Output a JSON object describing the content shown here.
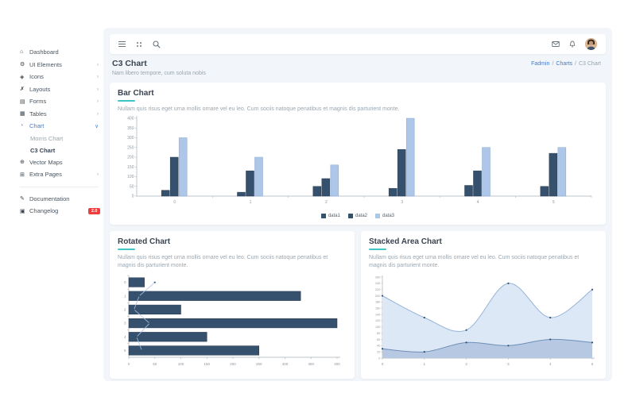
{
  "sidebar": {
    "items": [
      {
        "label": "Dashboard",
        "icon": "dashboard-icon"
      },
      {
        "label": "UI Elements",
        "icon": "ui-elements-icon",
        "chevron": "›"
      },
      {
        "label": "Icons",
        "icon": "icons-icon",
        "chevron": "›"
      },
      {
        "label": "Layouts",
        "icon": "layouts-icon",
        "chevron": "›"
      },
      {
        "label": "Forms",
        "icon": "forms-icon",
        "chevron": "›"
      },
      {
        "label": "Tables",
        "icon": "tables-icon",
        "chevron": "›"
      },
      {
        "label": "Chart",
        "icon": "chart-icon",
        "chevron": "∨",
        "active": true
      },
      {
        "label": "Vector Maps",
        "icon": "vector-maps-icon"
      },
      {
        "label": "Extra Pages",
        "icon": "extra-pages-icon",
        "chevron": "›"
      }
    ],
    "submenu": [
      {
        "label": "Morris Chart"
      },
      {
        "label": "C3 Chart",
        "current": true
      }
    ],
    "footer": [
      {
        "label": "Documentation",
        "icon": "documentation-icon"
      },
      {
        "label": "Changelog",
        "icon": "changelog-icon",
        "badge": "2.0"
      }
    ]
  },
  "page_header": {
    "title": "C3 Chart",
    "subtitle": "Nam libero tempore, cum soluta nobis",
    "breadcrumb": [
      "Fadmin",
      "Charts",
      "C3 Chart"
    ]
  },
  "cards": {
    "bar": {
      "title": "Bar Chart",
      "description": "Nullam quis risus eget urna mollis ornare vel eu leo. Cum sociis natoque penatibus et magnis dis parturient monte."
    },
    "rotated": {
      "title": "Rotated Chart",
      "description": "Nullam quis risus eget urna mollis ornare vel eu leo. Cum sociis natoque penatibus et magnis dis parturient monte."
    },
    "area": {
      "title": "Stacked Area Chart",
      "description": "Nullam quis risus eget urna mollis ornare vel eu leo. Cum sociis natoque penatibus et magnis dis parturient monte."
    }
  },
  "colors": {
    "navy": "#36516e",
    "navy_border": "#26394e",
    "light_blue": "#aec6e8",
    "light_blue_border": "#86a7d2",
    "teal_accent": "#41c5c7",
    "link_blue": "#3b7ddd",
    "axis": "#aab2ba",
    "axis_text": "#8b959e"
  },
  "chart_data": [
    {
      "id": "bar-chart",
      "type": "bar",
      "title": "Bar Chart",
      "categories": [
        "0",
        "1",
        "2",
        "3",
        "4",
        "5"
      ],
      "series": [
        {
          "name": "data1",
          "color": "#36516e",
          "border": "#26394e",
          "values": [
            30,
            20,
            50,
            40,
            55,
            50
          ]
        },
        {
          "name": "data2",
          "color": "#36516e",
          "border": "#26394e",
          "values": [
            200,
            130,
            90,
            240,
            130,
            220
          ]
        },
        {
          "name": "data3",
          "color": "#aec6e8",
          "border": "#86a7d2",
          "values": [
            300,
            200,
            160,
            400,
            250,
            250
          ]
        }
      ],
      "xlabel": "",
      "ylabel": "",
      "ylim": [
        0,
        400
      ],
      "ytick_step": 50,
      "grid": false,
      "legend_position": "bottom"
    },
    {
      "id": "rotated-chart",
      "type": "bar",
      "rotated": true,
      "title": "Rotated Chart",
      "categories": [
        "0",
        "1",
        "2",
        "3",
        "4",
        "5"
      ],
      "series": [
        {
          "name": "data1",
          "type": "bar",
          "color": "#36516e",
          "border": "#26394e",
          "values": [
            30,
            330,
            100,
            400,
            150,
            250
          ]
        },
        {
          "name": "data2",
          "type": "line",
          "color": "#aec6e8",
          "dot_color": "#2f4a63",
          "values": [
            50,
            20,
            10,
            40,
            15,
            25
          ]
        }
      ],
      "xlabel": "",
      "ylabel": "",
      "value_lim": [
        0,
        400
      ],
      "value_tick_step": 50,
      "grid": false,
      "legend_position": "none"
    },
    {
      "id": "stacked-area-chart",
      "type": "area",
      "title": "Stacked Area Chart",
      "x": [
        "0",
        "1",
        "2",
        "3",
        "4",
        "5"
      ],
      "series": [
        {
          "name": "data1",
          "color": "#6d8fb5",
          "fill": "#b7c9e2",
          "dot_color": "#33506e",
          "values": [
            30,
            20,
            50,
            40,
            60,
            50
          ]
        },
        {
          "name": "data2",
          "color": "#96b3d9",
          "fill": "#dde8f6",
          "dot_color": "#33506e",
          "values": [
            200,
            130,
            90,
            240,
            130,
            220
          ]
        }
      ],
      "xlabel": "",
      "ylabel": "",
      "ylim": [
        0,
        260
      ],
      "ytick_step": 20,
      "grid": false,
      "legend_position": "none"
    }
  ]
}
